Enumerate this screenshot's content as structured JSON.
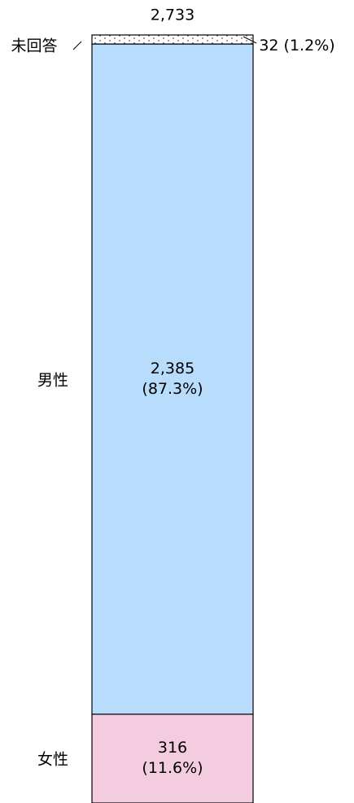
{
  "chart_data": {
    "type": "stacked_bar",
    "total": {
      "value": 2733,
      "label": "2,733"
    },
    "ylim": [
      0,
      2733
    ],
    "series": [
      {
        "name": "女性",
        "color": "#f4cce0",
        "values": [
          316
        ],
        "value_labels": [
          "316\n(11.6%)"
        ]
      },
      {
        "name": "男性",
        "color": "#b8dcfc",
        "values": [
          2385
        ],
        "value_labels": [
          "2,385\n(87.3%)"
        ]
      },
      {
        "name": "未回答",
        "color": "#ffffff",
        "pattern": "dots",
        "values": [
          32
        ],
        "value_labels": [
          "32 (1.2%)"
        ]
      }
    ]
  }
}
